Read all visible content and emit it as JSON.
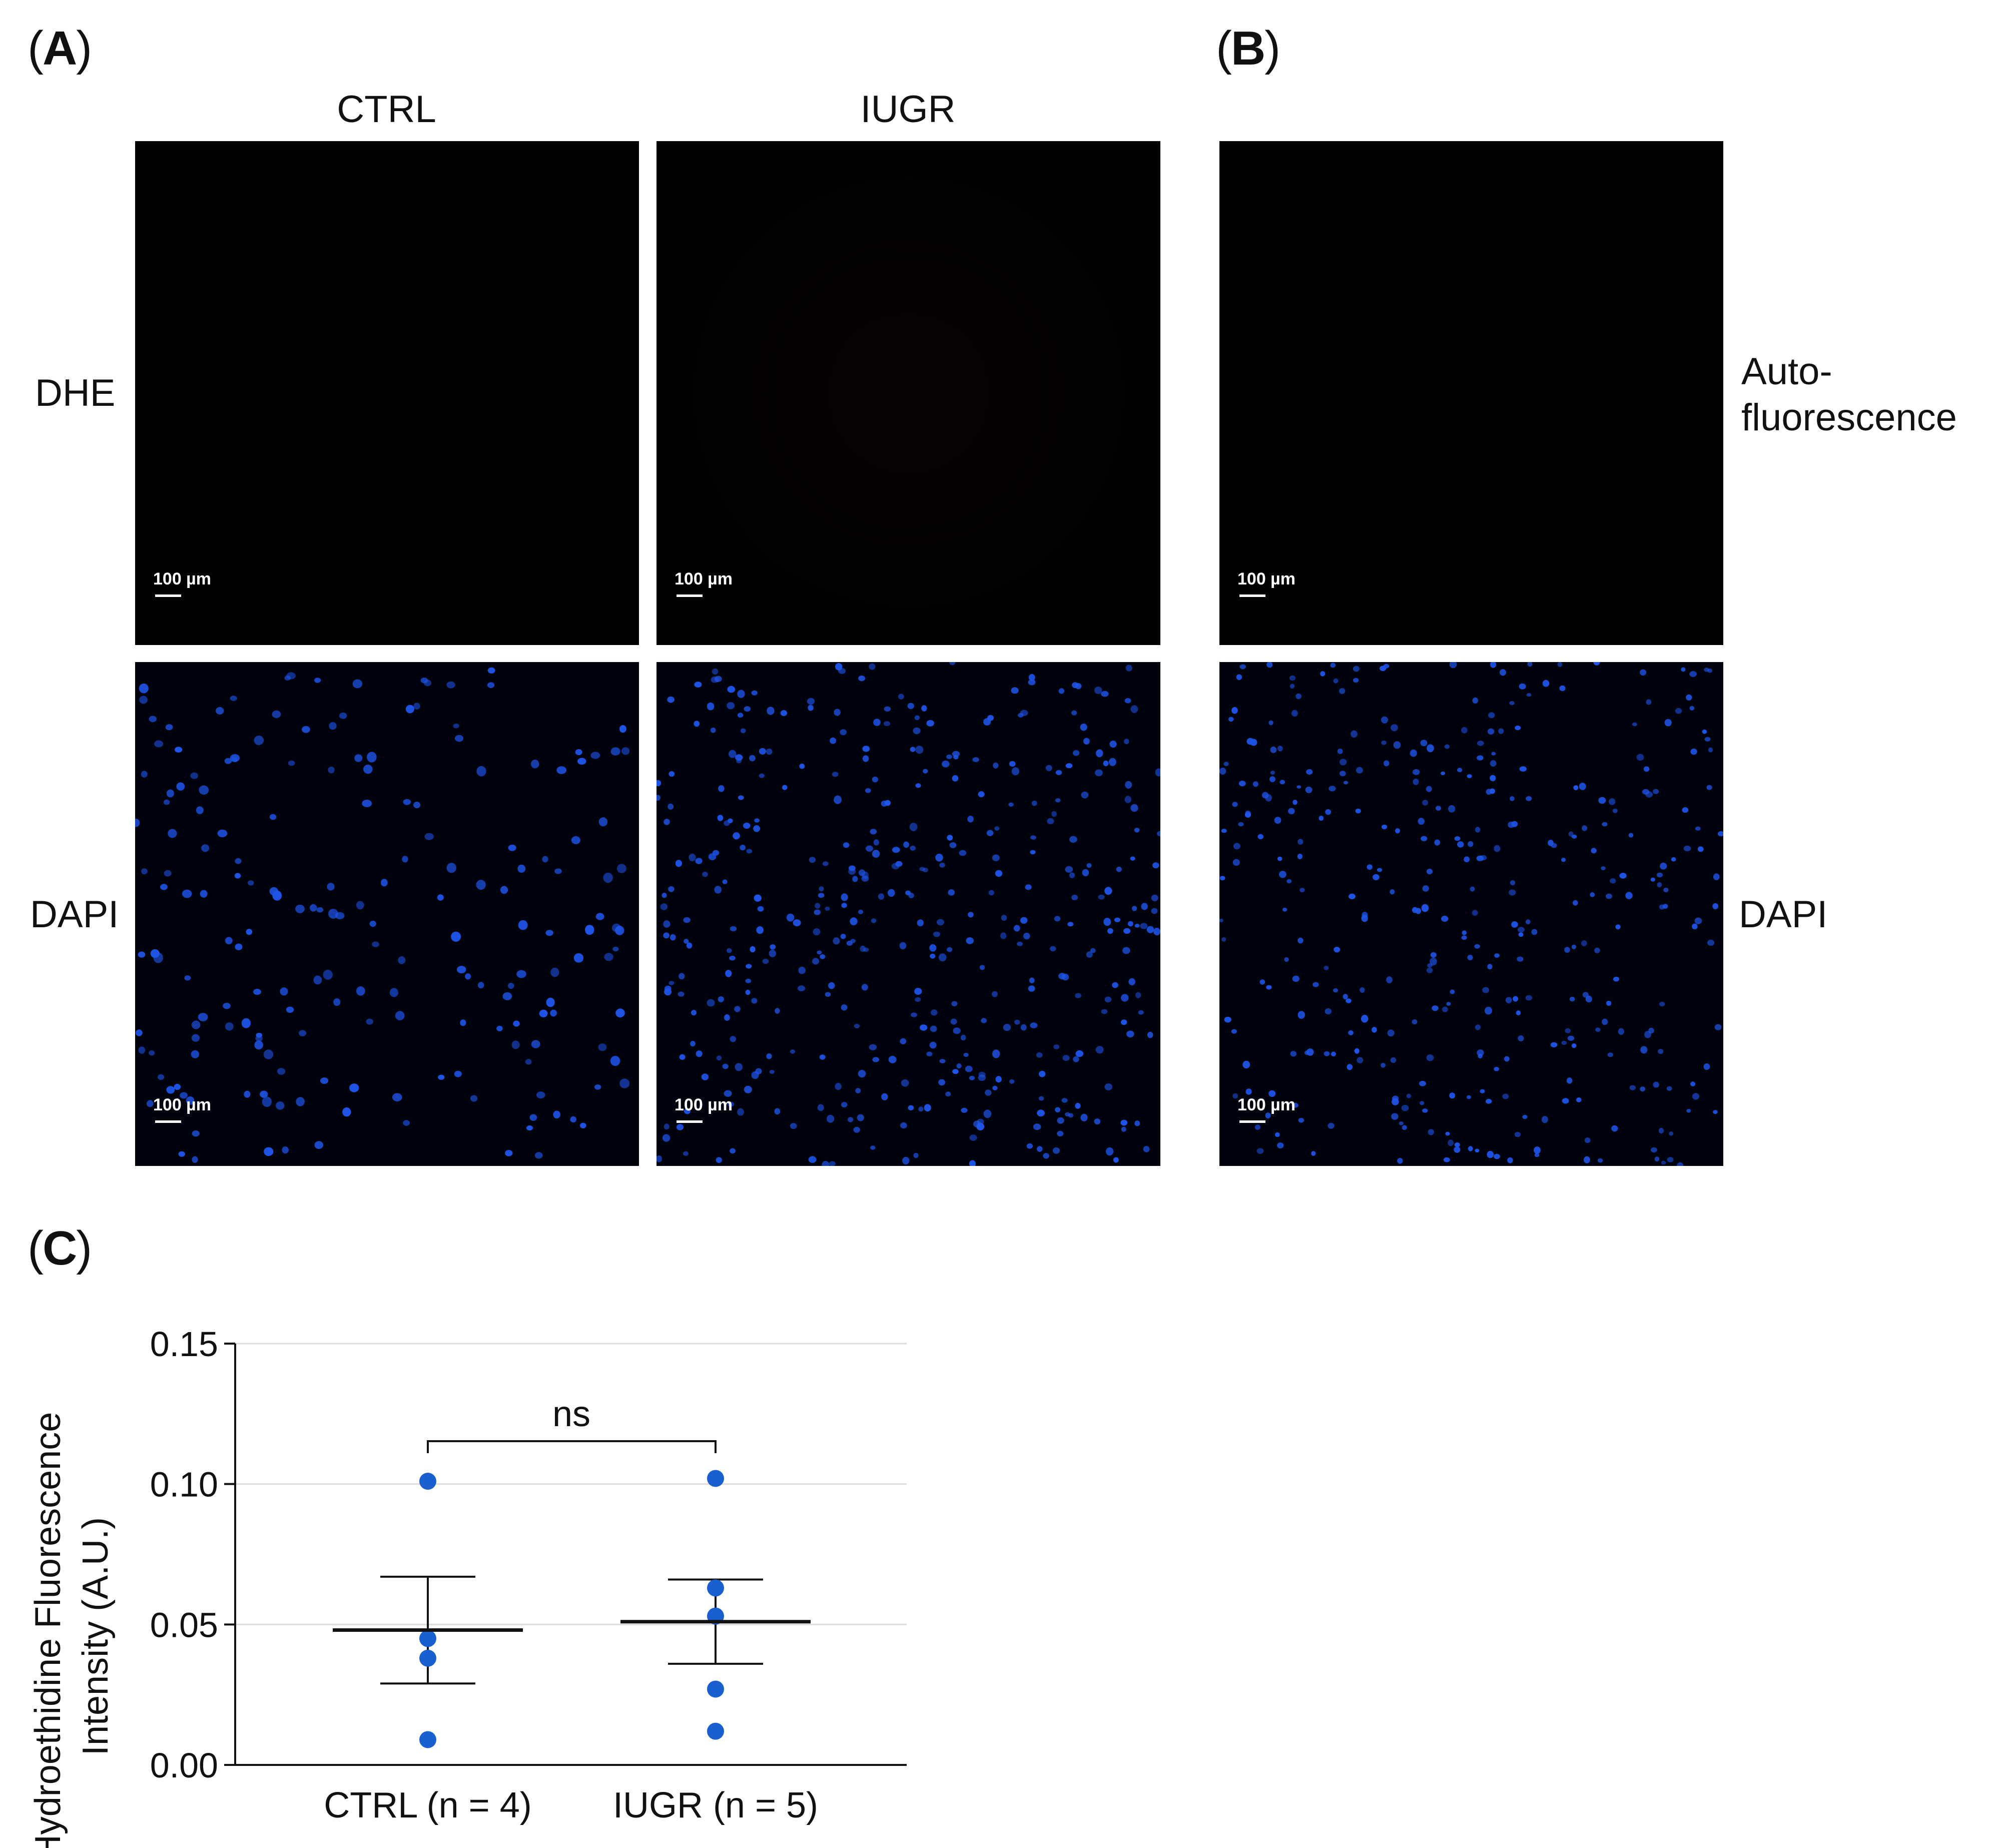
{
  "panel_labels": {
    "a": "A",
    "b": "B",
    "c": "C"
  },
  "panel_a": {
    "columns": [
      "CTRL",
      "IUGR"
    ],
    "rows": [
      "DHE",
      "DAPI"
    ],
    "scale_bar": "100 µm"
  },
  "panel_b": {
    "rows": [
      "Auto-",
      "fluorescence",
      "DAPI"
    ],
    "scale_bar": "100 µm"
  },
  "colors": {
    "nuclei": "#1e54e8",
    "dots": "#1a5fd0",
    "micro_bg": "#000000"
  },
  "chart_data": {
    "type": "scatter",
    "title": "",
    "ylabel_lines": [
      "Hydroethidine Fluorescence",
      "Intensity (A.U.)"
    ],
    "categories": [
      "CTRL (n = 4)",
      "IUGR (n = 5)"
    ],
    "ylim": [
      0,
      0.15
    ],
    "yticks": [
      "0.00",
      "0.05",
      "0.10",
      "0.15"
    ],
    "ytick_values": [
      0,
      0.05,
      0.1,
      0.15
    ],
    "grid": true,
    "series": [
      {
        "name": "CTRL (n = 4)",
        "values": [
          0.101,
          0.045,
          0.038,
          0.009
        ],
        "mean": 0.048,
        "sem_upper": 0.067,
        "sem_lower": 0.029
      },
      {
        "name": "IUGR (n = 5)",
        "values": [
          0.102,
          0.063,
          0.053,
          0.027,
          0.012
        ],
        "mean": 0.051,
        "sem_upper": 0.066,
        "sem_lower": 0.036
      }
    ],
    "annotation": "ns"
  }
}
